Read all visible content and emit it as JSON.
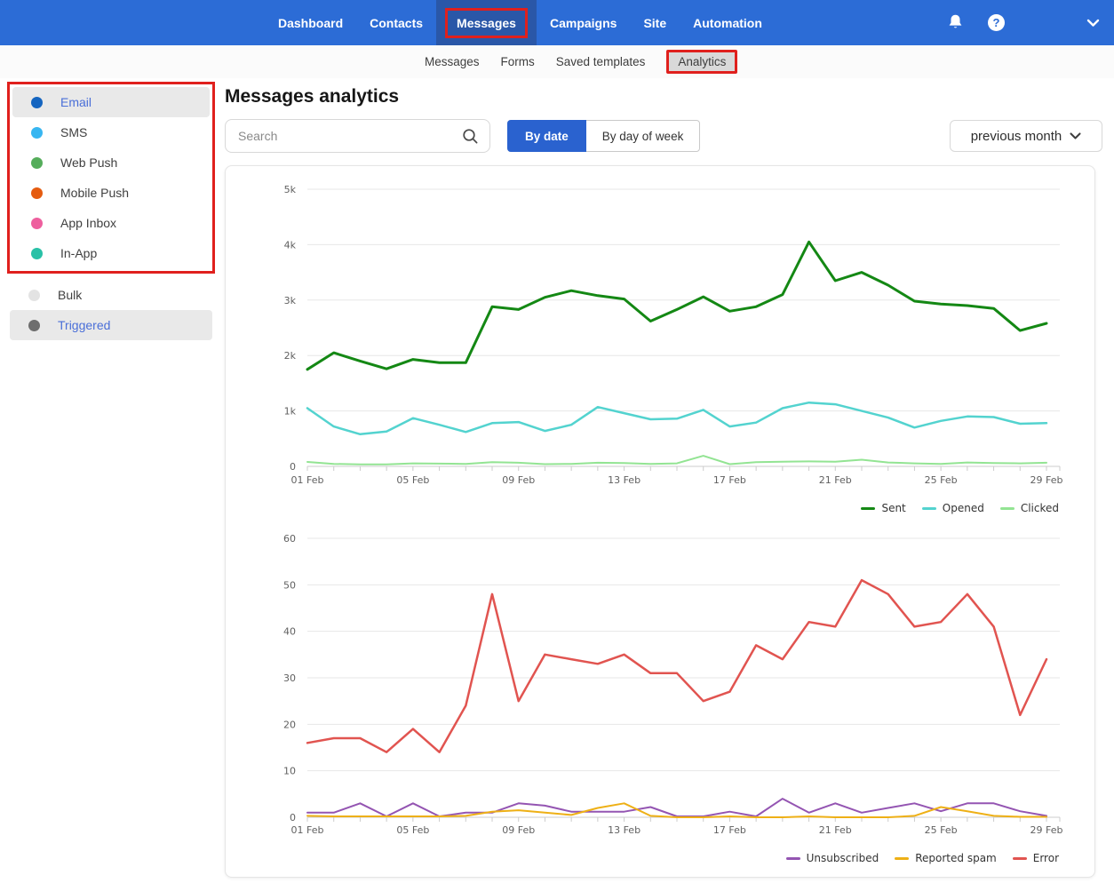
{
  "colors": {
    "nav_blue": "#2c6cd6",
    "nav_active_blue": "#2a57a8",
    "annotation_red": "#e0201d",
    "accent_blue": "#2a62cf",
    "link_blue": "#4a6fd8"
  },
  "nav": {
    "items": [
      {
        "label": "Dashboard"
      },
      {
        "label": "Contacts"
      },
      {
        "label": "Messages"
      },
      {
        "label": "Campaigns"
      },
      {
        "label": "Site"
      },
      {
        "label": "Automation"
      }
    ],
    "active": "Messages",
    "help_glyph": "?"
  },
  "subnav": {
    "items": [
      {
        "label": "Messages"
      },
      {
        "label": "Forms"
      },
      {
        "label": "Saved templates"
      },
      {
        "label": "Analytics"
      }
    ],
    "active": "Analytics"
  },
  "sidebar": {
    "channels": [
      {
        "label": "Email",
        "color": "#1565c0",
        "selected": true
      },
      {
        "label": "SMS",
        "color": "#38b6f1"
      },
      {
        "label": "Web Push",
        "color": "#55ad5b"
      },
      {
        "label": "Mobile Push",
        "color": "#e55c10"
      },
      {
        "label": "App Inbox",
        "color": "#ee5f9e"
      },
      {
        "label": "In-App",
        "color": "#29c1a7"
      }
    ],
    "modes": [
      {
        "label": "Bulk",
        "color": "#e3e3e3"
      },
      {
        "label": "Triggered",
        "color": "#6e6e6e",
        "selected": true
      }
    ]
  },
  "main": {
    "title": "Messages analytics",
    "search_placeholder": "Search",
    "view_toggle": [
      {
        "label": "By date",
        "active": true
      },
      {
        "label": "By day of week",
        "active": false
      }
    ],
    "period_selector": "previous month"
  },
  "chart_data": [
    {
      "type": "line",
      "name": "messages-by-date",
      "title": "",
      "xlabel": "",
      "ylabel": "",
      "grid": true,
      "legend_position": "bottom-right",
      "categories": [
        "01 Feb",
        "02 Feb",
        "03 Feb",
        "04 Feb",
        "05 Feb",
        "06 Feb",
        "07 Feb",
        "08 Feb",
        "09 Feb",
        "10 Feb",
        "11 Feb",
        "12 Feb",
        "13 Feb",
        "14 Feb",
        "15 Feb",
        "16 Feb",
        "17 Feb",
        "18 Feb",
        "19 Feb",
        "20 Feb",
        "21 Feb",
        "22 Feb",
        "23 Feb",
        "24 Feb",
        "25 Feb",
        "26 Feb",
        "27 Feb",
        "28 Feb",
        "29 Feb"
      ],
      "xtick_label_every": 4,
      "ylim": [
        0,
        5000
      ],
      "ytick_values": [
        0,
        1000,
        2000,
        3000,
        4000,
        5000
      ],
      "ytick_labels": [
        "0",
        "1k",
        "2k",
        "3k",
        "4k",
        "5k"
      ],
      "series": [
        {
          "name": "Sent",
          "color": "#148814",
          "values": [
            1750,
            2050,
            1900,
            1760,
            1930,
            1870,
            1870,
            2880,
            2830,
            3050,
            3170,
            3080,
            3020,
            2620,
            2830,
            3060,
            2800,
            2880,
            3100,
            4050,
            3350,
            3500,
            3270,
            2980,
            2930,
            2900,
            2850,
            2450,
            2580
          ]
        },
        {
          "name": "Opened",
          "color": "#53d3cf",
          "values": [
            1050,
            720,
            580,
            630,
            870,
            750,
            620,
            780,
            800,
            640,
            750,
            1070,
            960,
            850,
            860,
            1020,
            720,
            790,
            1050,
            1150,
            1120,
            1000,
            880,
            700,
            820,
            900,
            890,
            770,
            780
          ]
        },
        {
          "name": "Clicked",
          "color": "#93e493",
          "values": [
            80,
            45,
            35,
            35,
            55,
            50,
            45,
            75,
            65,
            40,
            45,
            65,
            60,
            45,
            55,
            190,
            40,
            75,
            85,
            90,
            85,
            120,
            70,
            55,
            45,
            70,
            60,
            55,
            65
          ]
        }
      ]
    },
    {
      "type": "line",
      "name": "errors-by-date",
      "title": "",
      "xlabel": "",
      "ylabel": "",
      "grid": true,
      "legend_position": "bottom-right",
      "categories": [
        "01 Feb",
        "02 Feb",
        "03 Feb",
        "04 Feb",
        "05 Feb",
        "06 Feb",
        "07 Feb",
        "08 Feb",
        "09 Feb",
        "10 Feb",
        "11 Feb",
        "12 Feb",
        "13 Feb",
        "14 Feb",
        "15 Feb",
        "16 Feb",
        "17 Feb",
        "18 Feb",
        "19 Feb",
        "20 Feb",
        "21 Feb",
        "22 Feb",
        "23 Feb",
        "24 Feb",
        "25 Feb",
        "26 Feb",
        "27 Feb",
        "28 Feb",
        "29 Feb"
      ],
      "xtick_label_every": 4,
      "ylim": [
        0,
        60
      ],
      "ytick_values": [
        0,
        10,
        20,
        30,
        40,
        50,
        60
      ],
      "ytick_labels": [
        "0",
        "10",
        "20",
        "30",
        "40",
        "50",
        "60"
      ],
      "series": [
        {
          "name": "Unsubscribed",
          "color": "#9455b2",
          "values": [
            1,
            1,
            3,
            0.2,
            3,
            0.2,
            1,
            1,
            3,
            2.5,
            1.2,
            1.2,
            1.2,
            2.2,
            0.2,
            0.2,
            1.2,
            0.2,
            4,
            1,
            3,
            1,
            2,
            3,
            1.3,
            3,
            3,
            1.3,
            0.3
          ]
        },
        {
          "name": "Reported spam",
          "color": "#eeb016",
          "values": [
            0.3,
            0.2,
            0.2,
            0.2,
            0.2,
            0.2,
            0.3,
            1.2,
            1.5,
            1,
            0.5,
            2,
            3,
            0.3,
            0,
            0,
            0.2,
            0,
            0,
            0.2,
            0,
            0,
            0,
            0.3,
            2.2,
            1.3,
            0.3,
            0.1,
            0.1
          ]
        },
        {
          "name": "Error",
          "color": "#e15450",
          "values": [
            16,
            17,
            17,
            14,
            19,
            14,
            24,
            48,
            25,
            35,
            34,
            33,
            35,
            31,
            31,
            25,
            27,
            37,
            34,
            42,
            41,
            51,
            48,
            41,
            42,
            48,
            41,
            22,
            34
          ]
        }
      ]
    }
  ]
}
